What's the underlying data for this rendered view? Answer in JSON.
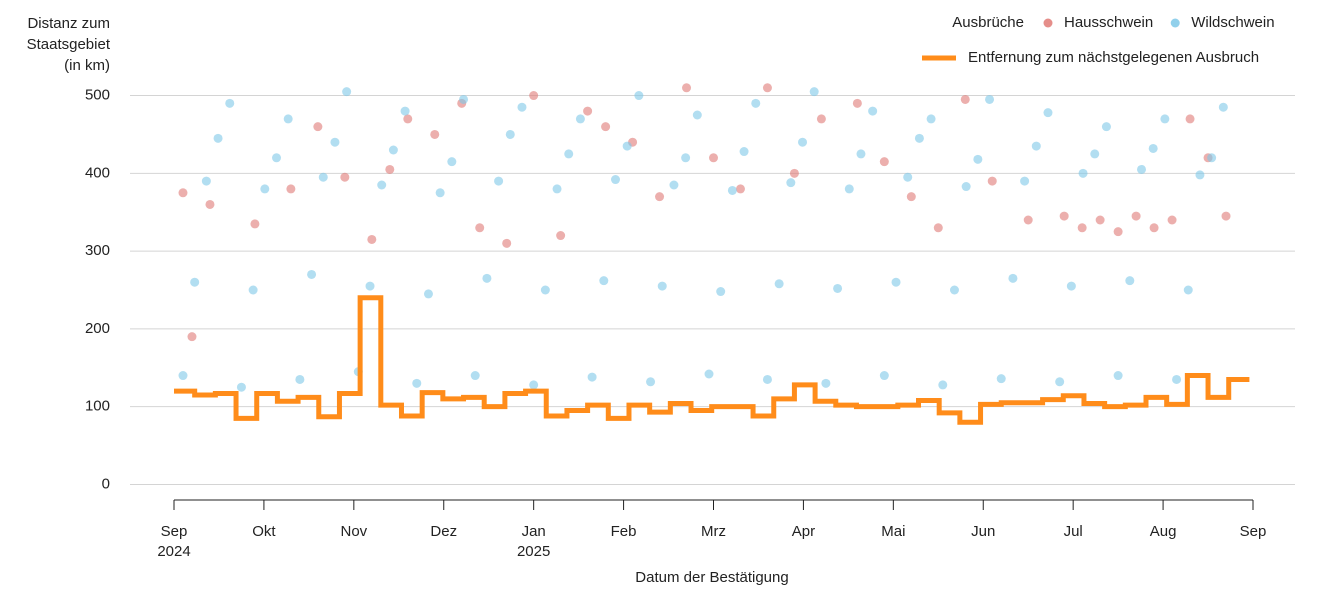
{
  "chart_data": {
    "type": "scatter-step",
    "y_label": [
      "Distanz zum",
      "Staatsgebiet",
      "(in km)"
    ],
    "x_label": "Datum der Bestätigung",
    "legend_title": "Ausbrüche",
    "ylim": [
      -20,
      520
    ],
    "yticks": [
      0,
      100,
      200,
      300,
      400,
      500
    ],
    "grid": true,
    "xlim": [
      0,
      12
    ],
    "xticks": [
      {
        "value": 0,
        "label": "Sep"
      },
      {
        "value": 1,
        "label": "Okt"
      },
      {
        "value": 2,
        "label": "Nov"
      },
      {
        "value": 3,
        "label": "Dez"
      },
      {
        "value": 4,
        "label": "Jan"
      },
      {
        "value": 5,
        "label": "Feb"
      },
      {
        "value": 6,
        "label": "Mrz"
      },
      {
        "value": 7,
        "label": "Apr"
      },
      {
        "value": 8,
        "label": "Mai"
      },
      {
        "value": 9,
        "label": "Jun"
      },
      {
        "value": 10,
        "label": "Jul"
      },
      {
        "value": 11,
        "label": "Aug"
      },
      {
        "value": 12,
        "label": "Sep"
      }
    ],
    "xtick_years": [
      {
        "value": 0,
        "label": "2024"
      },
      {
        "value": 4,
        "label": "2025"
      }
    ],
    "series": [
      {
        "name": "Hausschwein",
        "kind": "scatter",
        "color": "#e07a76",
        "x": [
          0.1,
          0.2,
          0.4,
          0.9,
          1.3,
          1.6,
          1.9,
          2.2,
          2.4,
          2.6,
          2.9,
          3.2,
          3.4,
          3.7,
          4.0,
          4.3,
          4.6,
          4.8,
          5.1,
          5.4,
          5.7,
          6.0,
          6.3,
          6.6,
          6.9,
          7.2,
          7.6,
          7.9,
          8.2,
          8.5,
          8.8,
          9.1,
          9.5,
          9.9,
          10.1,
          10.3,
          10.5,
          10.7,
          10.9,
          11.1,
          11.3,
          11.5,
          11.7
        ],
        "values": [
          375,
          190,
          360,
          335,
          380,
          460,
          395,
          315,
          405,
          470,
          450,
          490,
          330,
          310,
          500,
          320,
          480,
          460,
          440,
          370,
          510,
          420,
          380,
          510,
          400,
          470,
          490,
          415,
          370,
          330,
          495,
          390,
          340,
          345,
          330,
          340,
          325,
          345,
          330,
          340,
          470,
          420,
          345
        ]
      },
      {
        "name": "Wildschwein",
        "kind": "scatter",
        "color": "#7ec8e8",
        "x": [
          0.1,
          0.23,
          0.36,
          0.49,
          0.62,
          0.75,
          0.88,
          1.01,
          1.14,
          1.27,
          1.4,
          1.53,
          1.66,
          1.79,
          1.92,
          2.05,
          2.18,
          2.31,
          2.44,
          2.57,
          2.7,
          2.83,
          2.96,
          3.09,
          3.22,
          3.35,
          3.48,
          3.61,
          3.74,
          3.87,
          4.0,
          4.13,
          4.26,
          4.39,
          4.52,
          4.65,
          4.78,
          4.91,
          5.04,
          5.17,
          5.3,
          5.43,
          5.56,
          5.69,
          5.82,
          5.95,
          6.08,
          6.21,
          6.34,
          6.47,
          6.6,
          6.73,
          6.86,
          6.99,
          7.12,
          7.25,
          7.38,
          7.51,
          7.64,
          7.77,
          7.9,
          8.03,
          8.16,
          8.29,
          8.42,
          8.55,
          8.68,
          8.81,
          8.94,
          9.07,
          9.2,
          9.33,
          9.46,
          9.59,
          9.72,
          9.85,
          9.98,
          10.11,
          10.24,
          10.37,
          10.5,
          10.63,
          10.76,
          10.89,
          11.02,
          11.15,
          11.28,
          11.41,
          11.54,
          11.67
        ],
        "values": [
          140,
          260,
          390,
          445,
          490,
          125,
          250,
          380,
          420,
          470,
          135,
          270,
          395,
          440,
          505,
          145,
          255,
          385,
          430,
          480,
          130,
          245,
          375,
          415,
          495,
          140,
          265,
          390,
          450,
          485,
          128,
          250,
          380,
          425,
          470,
          138,
          262,
          392,
          435,
          500,
          132,
          255,
          385,
          420,
          475,
          142,
          248,
          378,
          428,
          490,
          135,
          258,
          388,
          440,
          505,
          130,
          252,
          380,
          425,
          480,
          140,
          260,
          395,
          445,
          470,
          128,
          250,
          383,
          418,
          495,
          136,
          265,
          390,
          435,
          478,
          132,
          255,
          400,
          425,
          460,
          140,
          262,
          405,
          432,
          470,
          135,
          250,
          398,
          420,
          485
        ]
      },
      {
        "name": "Entfernung zum nächstgelegenen Ausbruch",
        "kind": "step",
        "color": "#ff8c1a",
        "x": [
          0,
          0.23,
          0.46,
          0.69,
          0.92,
          1.15,
          1.38,
          1.61,
          1.84,
          2.07,
          2.3,
          2.53,
          2.76,
          2.99,
          3.22,
          3.45,
          3.68,
          3.91,
          4.14,
          4.37,
          4.6,
          4.83,
          5.06,
          5.29,
          5.52,
          5.75,
          5.98,
          6.21,
          6.44,
          6.67,
          6.9,
          7.13,
          7.36,
          7.59,
          7.82,
          8.05,
          8.28,
          8.51,
          8.74,
          8.97,
          9.2,
          9.43,
          9.66,
          9.89,
          10.12,
          10.35,
          10.58,
          10.81,
          11.04,
          11.27,
          11.5,
          11.73
        ],
        "values": [
          120,
          115,
          117,
          85,
          117,
          107,
          112,
          87,
          117,
          240,
          102,
          88,
          118,
          110,
          112,
          100,
          117,
          120,
          88,
          95,
          102,
          85,
          102,
          93,
          104,
          95,
          100,
          100,
          88,
          110,
          128,
          107,
          102,
          100,
          100,
          102,
          108,
          92,
          80,
          103,
          105,
          105,
          109,
          114,
          104,
          100,
          102,
          112,
          103,
          140,
          112,
          135
        ]
      }
    ]
  }
}
